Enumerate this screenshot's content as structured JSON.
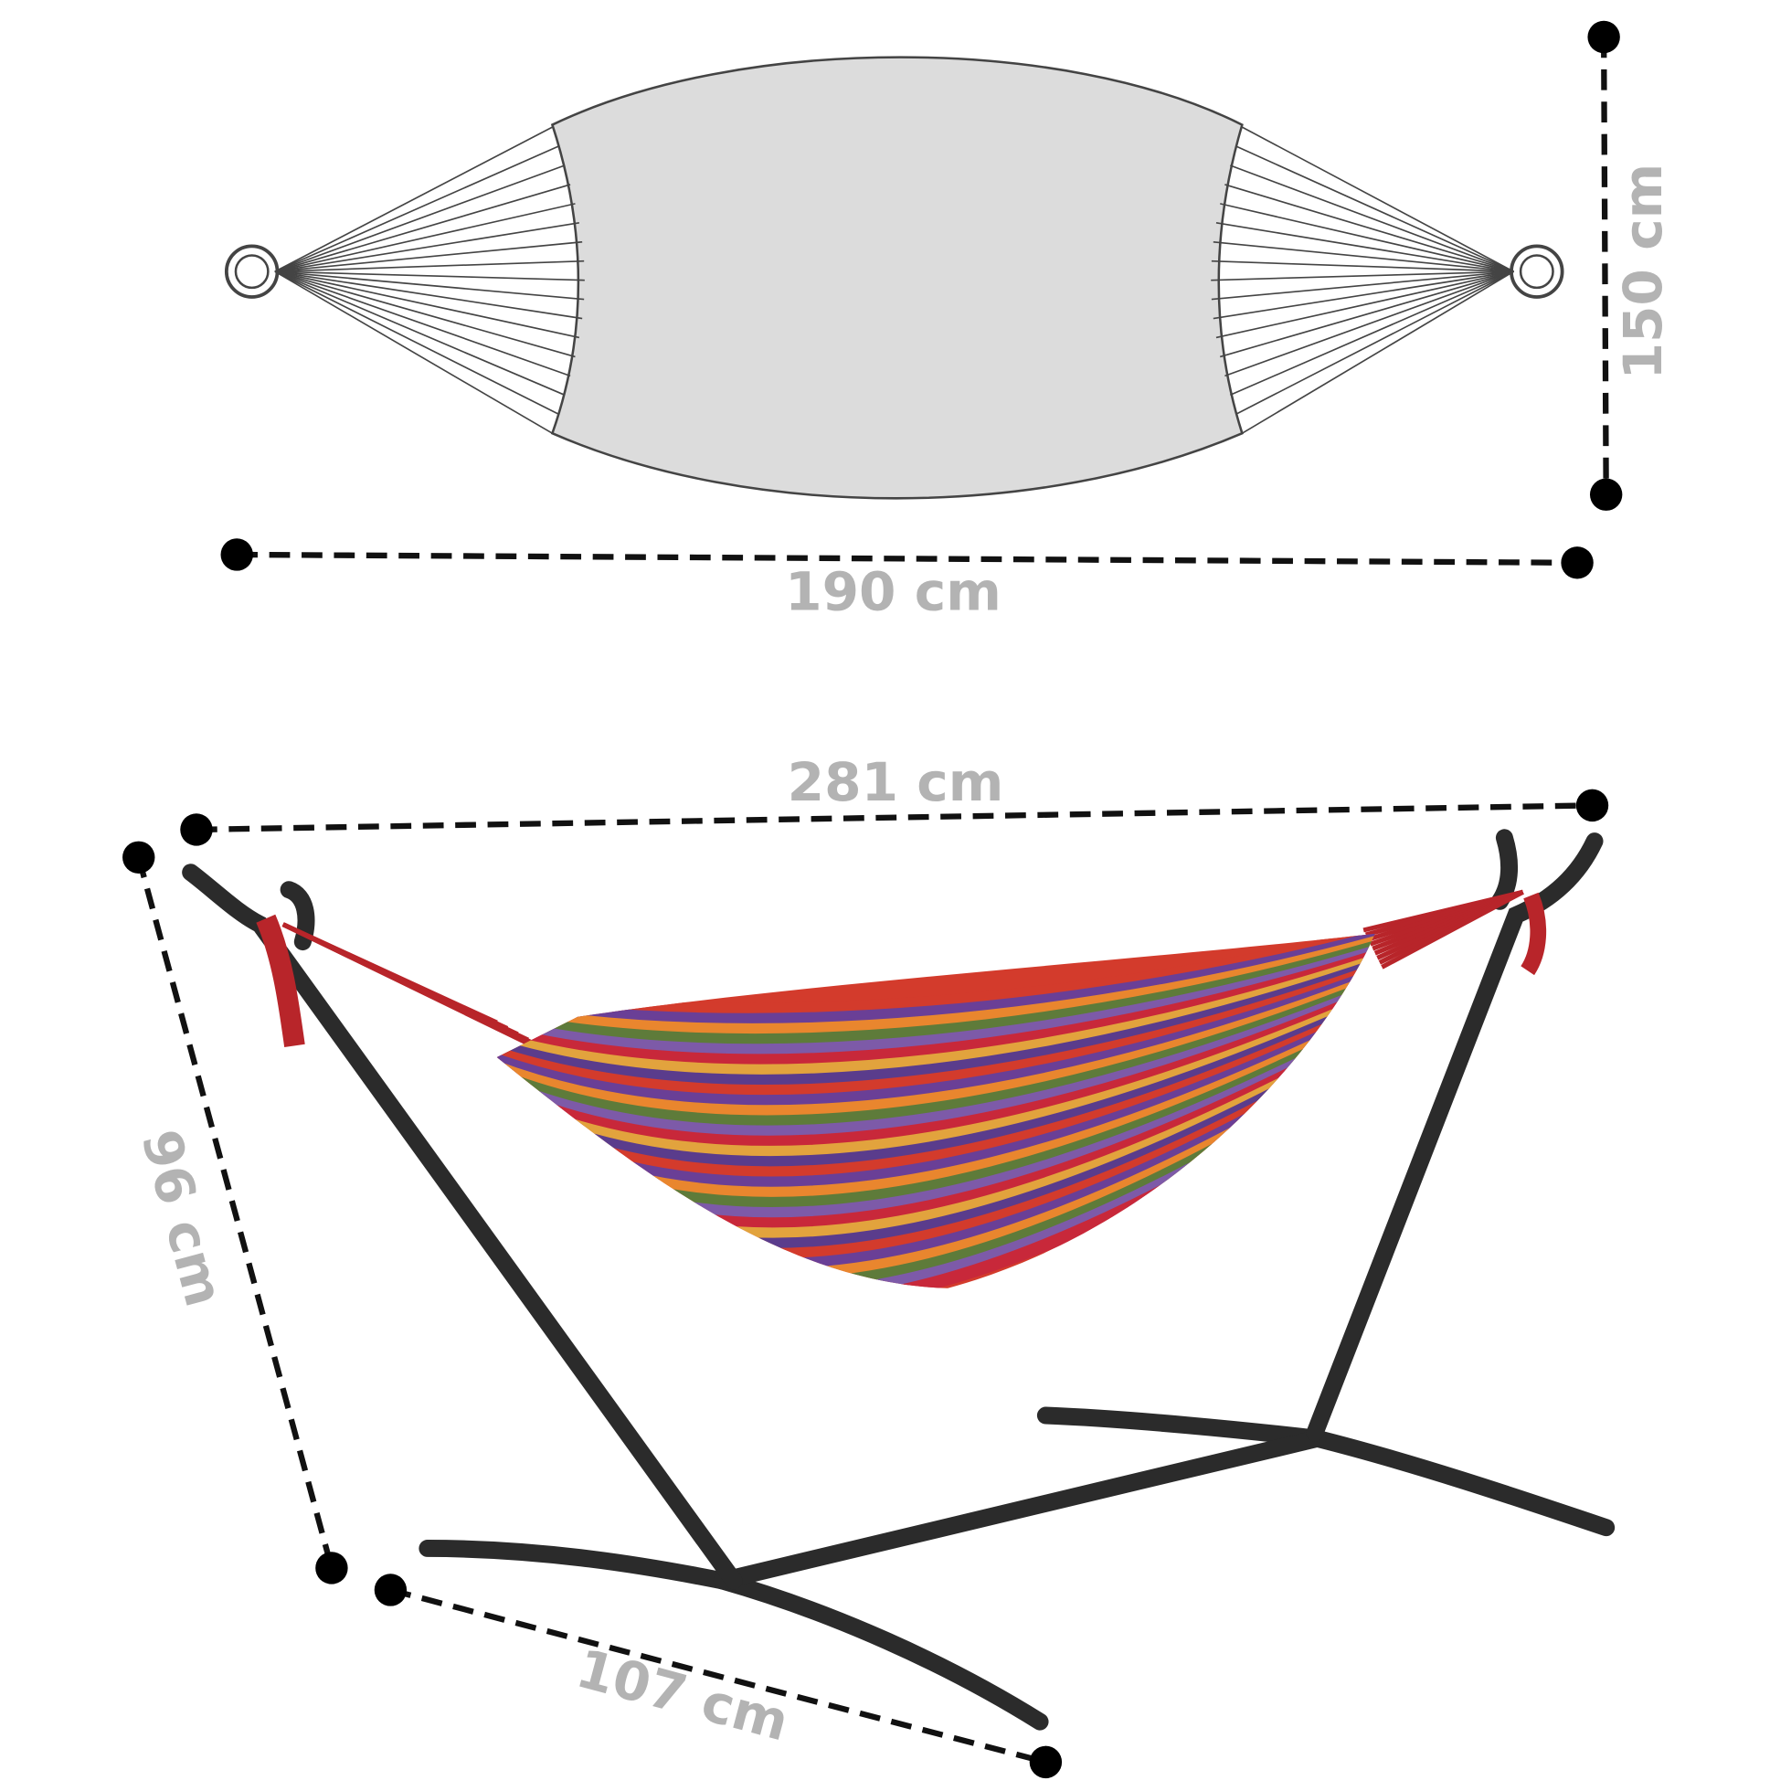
{
  "dimensions": {
    "hammock_length": "190 cm",
    "hammock_width": "150 cm",
    "stand_length": "281 cm",
    "stand_height": "96 cm",
    "stand_width": "107 cm"
  }
}
